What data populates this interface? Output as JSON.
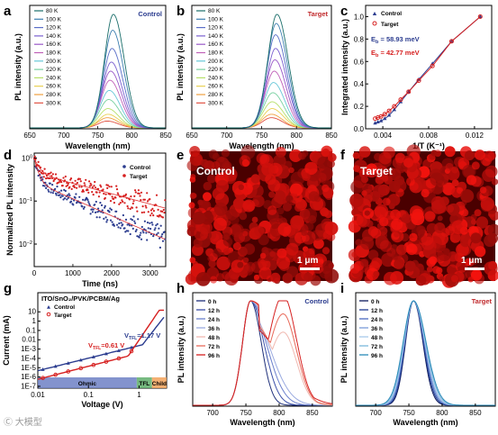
{
  "panel_labels": {
    "a": "a",
    "b": "b",
    "c": "c",
    "d": "d",
    "e": "e",
    "f": "f",
    "g": "g",
    "h": "h",
    "i": "i"
  },
  "colors": {
    "control_red": "#d62020",
    "target_red": "#c0282b",
    "navy": "#2b3c8f",
    "ohmic": "#6d80c4",
    "tfl": "#5fae6b",
    "child": "#f2a25a"
  },
  "chart_data": [
    {
      "id": "a",
      "type": "line",
      "title": "Control",
      "xlabel": "Wavelength (nm)",
      "ylabel": "PL intensity (a.u.)",
      "xlim": [
        650,
        850
      ],
      "xticks": [
        "650",
        "700",
        "750",
        "800",
        "850"
      ],
      "series": [
        {
          "name": "80 K",
          "peak_nm": 773,
          "amp": 1.0,
          "color": "#1a6e6a"
        },
        {
          "name": "100 K",
          "peak_nm": 772,
          "amp": 0.86,
          "color": "#3d7fb0"
        },
        {
          "name": "120 K",
          "peak_nm": 771,
          "amp": 0.7,
          "color": "#5a6fc8"
        },
        {
          "name": "140 K",
          "peak_nm": 770,
          "amp": 0.58,
          "color": "#7a5fd0"
        },
        {
          "name": "160 K",
          "peak_nm": 769,
          "amp": 0.5,
          "color": "#9a58c8"
        },
        {
          "name": "180 K",
          "peak_nm": 768,
          "amp": 0.42,
          "color": "#c060b8"
        },
        {
          "name": "200 K",
          "peak_nm": 767,
          "amp": 0.33,
          "color": "#68c8d8"
        },
        {
          "name": "220 K",
          "peak_nm": 766,
          "amp": 0.25,
          "color": "#78d0a0"
        },
        {
          "name": "240 K",
          "peak_nm": 765,
          "amp": 0.17,
          "color": "#b6e06a"
        },
        {
          "name": "260 K",
          "peak_nm": 765,
          "amp": 0.12,
          "color": "#e8d050"
        },
        {
          "name": "280 K",
          "peak_nm": 764,
          "amp": 0.09,
          "color": "#f0a040"
        },
        {
          "name": "300 K",
          "peak_nm": 764,
          "amp": 0.06,
          "color": "#e05040"
        }
      ]
    },
    {
      "id": "b",
      "type": "line",
      "title": "Target",
      "xlabel": "Wavelength (nm)",
      "ylabel": "PL intensity (a.u.)",
      "xlim": [
        650,
        850
      ],
      "xticks": [
        "650",
        "700",
        "750",
        "800",
        "850"
      ],
      "series": [
        {
          "name": "80 K",
          "peak_nm": 772,
          "amp": 1.0,
          "color": "#1a6e6a"
        },
        {
          "name": "100 K",
          "peak_nm": 771,
          "amp": 0.92,
          "color": "#3d7fb0"
        },
        {
          "name": "120 K",
          "peak_nm": 770,
          "amp": 0.82,
          "color": "#5a6fc8"
        },
        {
          "name": "140 K",
          "peak_nm": 770,
          "amp": 0.7,
          "color": "#7a5fd0"
        },
        {
          "name": "160 K",
          "peak_nm": 769,
          "amp": 0.6,
          "color": "#9a58c8"
        },
        {
          "name": "180 K",
          "peak_nm": 768,
          "amp": 0.5,
          "color": "#c060b8"
        },
        {
          "name": "200 K",
          "peak_nm": 767,
          "amp": 0.4,
          "color": "#68c8d8"
        },
        {
          "name": "220 K",
          "peak_nm": 766,
          "amp": 0.31,
          "color": "#78d0a0"
        },
        {
          "name": "240 K",
          "peak_nm": 765,
          "amp": 0.23,
          "color": "#b6e06a"
        },
        {
          "name": "260 K",
          "peak_nm": 765,
          "amp": 0.17,
          "color": "#e8d050"
        },
        {
          "name": "280 K",
          "peak_nm": 764,
          "amp": 0.12,
          "color": "#f0a040"
        },
        {
          "name": "300 K",
          "peak_nm": 764,
          "amp": 0.09,
          "color": "#e05040"
        }
      ]
    },
    {
      "id": "c",
      "type": "scatter",
      "xlabel": "1/T (K⁻¹)",
      "ylabel": "Integrated intensity (a.u.)",
      "xlim": [
        0.0025,
        0.0135
      ],
      "ylim": [
        0.0,
        1.1
      ],
      "xticks": [
        "0.004",
        "0.008",
        "0.012"
      ],
      "yticks": [
        "0.0",
        "0.2",
        "0.4",
        "0.6",
        "0.8",
        "1.0"
      ],
      "annotations": [
        {
          "prefix": "E",
          "sub": "b",
          "value": " = 58.93 meV",
          "color": "#2b3c8f"
        },
        {
          "prefix": "E",
          "sub": "b",
          "value": " = 42.77 meV",
          "color": "#d62020"
        }
      ],
      "series": [
        {
          "name": "Control",
          "color": "#2b3c8f",
          "x": [
            0.00333,
            0.00357,
            0.00385,
            0.00417,
            0.00455,
            0.005,
            0.00556,
            0.00625,
            0.00714,
            0.00833,
            0.01,
            0.0125
          ],
          "y": [
            0.05,
            0.06,
            0.07,
            0.09,
            0.12,
            0.17,
            0.24,
            0.33,
            0.44,
            0.58,
            0.78,
            1.0
          ]
        },
        {
          "name": "Target",
          "color": "#d62020",
          "x": [
            0.00333,
            0.00357,
            0.00385,
            0.00417,
            0.00455,
            0.005,
            0.00556,
            0.00625,
            0.00714,
            0.00833,
            0.01,
            0.0125
          ],
          "y": [
            0.09,
            0.1,
            0.11,
            0.13,
            0.16,
            0.2,
            0.26,
            0.33,
            0.43,
            0.56,
            0.78,
            1.0
          ]
        }
      ]
    },
    {
      "id": "d",
      "type": "scatter",
      "xlabel": "Time (ns)",
      "ylabel": "Normalized PL intensity",
      "xlim": [
        0,
        3400
      ],
      "ylog": true,
      "ylim": [
        0.003,
        1.3
      ],
      "xticks": [
        "0",
        "1000",
        "2000",
        "3000"
      ],
      "series": [
        {
          "name": "Control",
          "color": "#2b3c8f",
          "tau_fast": 90,
          "tau_slow": 1100,
          "frac_fast": 0.72
        },
        {
          "name": "Target",
          "color": "#d62020",
          "tau_fast": 120,
          "tau_slow": 1800,
          "frac_fast": 0.55
        }
      ]
    },
    {
      "id": "g",
      "type": "line",
      "title": "ITO/SnO₂/PVK/PCBM/Ag",
      "xlabel": "Voltage (V)",
      "ylabel": "Current (mA)",
      "xlog": true,
      "ylog": true,
      "xticks": [
        "0.01",
        "0.1",
        "1"
      ],
      "yticks": [
        "1E-7",
        "1E-6",
        "1E-5",
        "1E-4",
        "1E-3",
        "0.01",
        "0.1",
        "1",
        "10"
      ],
      "regions": [
        "Ohmic",
        "TFL",
        "Child"
      ],
      "annotations": [
        {
          "label": "V",
          "sub": "TFL",
          "value": "=1.17 V",
          "color": "#2b3c8f"
        },
        {
          "label": "V",
          "sub": "TFL",
          "value": "=0.61 V",
          "color": "#d62020"
        }
      ],
      "series": [
        {
          "name": "Control",
          "color": "#2b3c8f"
        },
        {
          "name": "Target",
          "color": "#d62020"
        }
      ]
    },
    {
      "id": "h",
      "type": "line",
      "title": "Control",
      "xlabel": "Wavelength (nm)",
      "ylabel": "PL intensity (a.u.)",
      "xlim": [
        670,
        880
      ],
      "xticks": [
        "700",
        "750",
        "800",
        "850"
      ],
      "series": [
        {
          "name": "0 h",
          "color": "#1e2f7a"
        },
        {
          "name": "12 h",
          "color": "#3a4fa8"
        },
        {
          "name": "24 h",
          "color": "#6a7fcc"
        },
        {
          "name": "36 h",
          "color": "#9aaae0"
        },
        {
          "name": "48 h",
          "color": "#f0b8b0"
        },
        {
          "name": "72 h",
          "color": "#e86a5a"
        },
        {
          "name": "96 h",
          "color": "#d62020"
        }
      ]
    },
    {
      "id": "i",
      "type": "line",
      "title": "Target",
      "xlabel": "Wavelength (nm)",
      "ylabel": "PL intensity (a.u.)",
      "xlim": [
        670,
        880
      ],
      "xticks": [
        "700",
        "750",
        "800",
        "850"
      ],
      "series": [
        {
          "name": "0 h",
          "color": "#0e1a5c"
        },
        {
          "name": "12 h",
          "color": "#1e3a90"
        },
        {
          "name": "24 h",
          "color": "#4a6ac0"
        },
        {
          "name": "36 h",
          "color": "#7a9ad8"
        },
        {
          "name": "48 h",
          "color": "#a8c8ec"
        },
        {
          "name": "72 h",
          "color": "#7ab8dc"
        },
        {
          "name": "96 h",
          "color": "#2a8ab8"
        }
      ]
    }
  ],
  "images": {
    "e": {
      "label": "Control",
      "scale": "1 μm"
    },
    "f": {
      "label": "Target",
      "scale": "1 μm"
    }
  },
  "watermark": "Ⓒ 大模型"
}
